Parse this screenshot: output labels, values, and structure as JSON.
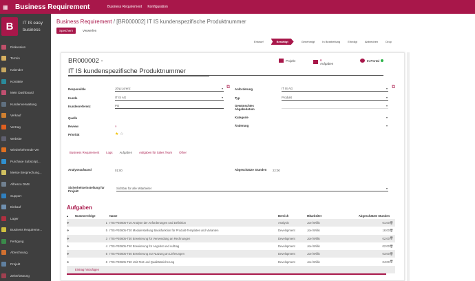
{
  "topbar": {
    "app_title": "Business Requirement",
    "menu": [
      "Business Requirement",
      "Konfiguration"
    ]
  },
  "sidebar": {
    "logo_letter": "B",
    "company_line1": "IT IS easy",
    "company_line2": "business",
    "items": [
      {
        "label": "Diskussion",
        "color": "#c0506a"
      },
      {
        "label": "Termin",
        "color": "#d8b060"
      },
      {
        "label": "Kalender",
        "color": "#c8a860"
      },
      {
        "label": "Kontakte",
        "color": "#2a8a9a"
      },
      {
        "label": "Mein Dashboard",
        "color": "#c05070"
      },
      {
        "label": "Kundenverwaltung",
        "color": "#607080"
      },
      {
        "label": "Verkauf",
        "color": "#d08030"
      },
      {
        "label": "Vertrag",
        "color": "#e06020"
      },
      {
        "label": "Website",
        "color": "#606070"
      },
      {
        "label": "Wiederkehrende Ver",
        "color": "#e07020"
      },
      {
        "label": "Purchase Subscript...",
        "color": "#3090d0"
      },
      {
        "label": "Messe Besprechung...",
        "color": "#d0c060"
      },
      {
        "label": "Alfresco DMS",
        "color": "#708090"
      },
      {
        "label": "Support",
        "color": "#3080c0"
      },
      {
        "label": "Einkauf",
        "color": "#7090b0"
      },
      {
        "label": "Lager",
        "color": "#b03040"
      },
      {
        "label": "Business Requireme...",
        "color": "#d0c040"
      },
      {
        "label": "Fertigung",
        "color": "#3a8a4a"
      },
      {
        "label": "Abrechnung",
        "color": "#d07030"
      },
      {
        "label": "Projekt",
        "color": "#6080a0"
      },
      {
        "label": "Zeiterfassung",
        "color": "#a04050"
      }
    ]
  },
  "breadcrumb": {
    "parent": "Business Requirement",
    "current": "[BR000002] IT IS kundenspezifische Produktnummer"
  },
  "buttons": {
    "save": "Speichern",
    "discard": "Verwerfen"
  },
  "statusbar": {
    "stages": [
      "Entwurf",
      "Bestätigt",
      "Genehmigt",
      "In Bearbeitung",
      "Erledigt",
      "Abbrechen",
      "Drop"
    ],
    "active": "Bestätigt"
  },
  "smart_buttons": {
    "project": "Projekt",
    "tasks_count": "6",
    "tasks": "Aufgaben",
    "portal": "In Portal"
  },
  "record": {
    "code": "BR000002 -",
    "title": "IT IS kundenspezifische Produktnummer"
  },
  "fields": {
    "responsible_label": "Responsible",
    "responsible": "Jörg Lorenz",
    "customer_label": "Kunde",
    "customer": "IT IS AG",
    "customer_ref_label": "Kundenreferenz",
    "customer_ref": "PO",
    "source_label": "Quelle",
    "review_label": "Review",
    "review": "×",
    "priority_label": "Priorität",
    "requested_by_label": "Anforderung",
    "requested_by": "IT IS AG",
    "type_label": "Typ",
    "type": "Produkt",
    "linked_label": "Gewünschtes Abgabedatum",
    "category_label": "Kategorie",
    "changes_label": "Änderung",
    "analysis_label": "Analyseaufwand",
    "analysis": "01:00",
    "estimated_label": "Abgeschätzte Stunden",
    "estimated": "22:00",
    "security_label": "Sicherheitseinstellung für Projekt:",
    "security": "Sichtbar für alle Mitarbeiter"
  },
  "notebook_tabs": [
    "Business Requirement",
    "Logs",
    "Aufgaben",
    "Aufgaben für Sales Team",
    "Other"
  ],
  "tasks": {
    "title": "Aufgaben",
    "columns": [
      "Nummernfolge",
      "Name",
      "Bereich",
      "Mitarbeiter",
      "Abgeschätzte Stunden"
    ],
    "rows": [
      {
        "seq": "1",
        "name": "ITIS-PE0605-T10 Analyse der Anforderungen und Definition",
        "area": "Analysis",
        "employee": "Joel Willis",
        "hours": "01:00"
      },
      {
        "seq": "5",
        "name": "ITIS-PE0605-T20 Modulerstellung Basisfunktion für Produkt-Templates und Varianten",
        "area": "Development",
        "employee": "Joel Willis",
        "hours": "16:00"
      },
      {
        "seq": "3",
        "name": "ITIS-PE0605-T30 Erweiterung für Verwendung an Rechnungen",
        "area": "Development",
        "employee": "Joel Willis",
        "hours": "02:00"
      },
      {
        "seq": "4",
        "name": "ITIS-PE0605-T40 Erweiterung für Angebot und Auftrag",
        "area": "Development",
        "employee": "Joel Willis",
        "hours": "02:00"
      },
      {
        "seq": "5",
        "name": "ITIS-PE0605-T50 Erweiterung zur Nutzung an Lieferungen",
        "area": "Development",
        "employee": "Joel Willis",
        "hours": "03:00"
      },
      {
        "seq": "6",
        "name": "ITIS-PE0605-T60 Unit-Test und Qualitätssicherung",
        "area": "Development",
        "employee": "Joel Willis",
        "hours": "04:00"
      }
    ],
    "add_line": "Eintrag hinzufügen"
  },
  "colors": {
    "brand": "#a8174a",
    "sidebar": "#3f3f3f",
    "online": "#2db34a"
  }
}
